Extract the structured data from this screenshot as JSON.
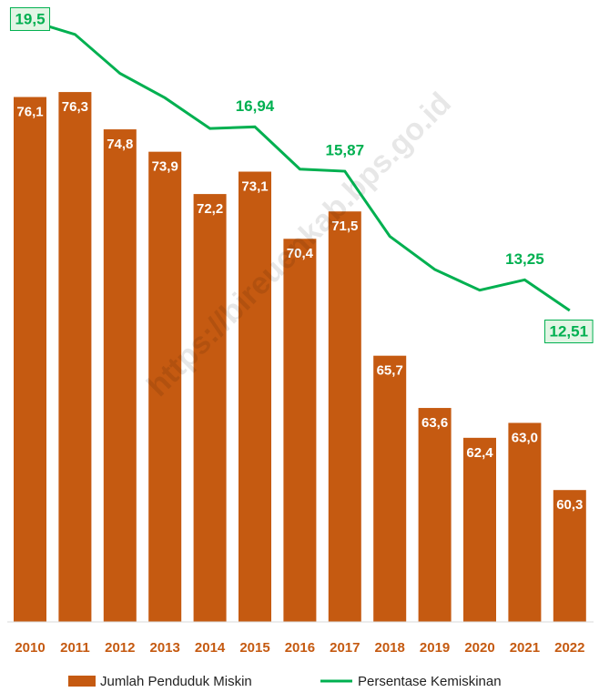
{
  "chart_data": {
    "type": "bar_line",
    "watermark": "https://bireuenkab.bps.go.id",
    "categories": [
      "2010",
      "2011",
      "2012",
      "2013",
      "2014",
      "2015",
      "2016",
      "2017",
      "2018",
      "2019",
      "2020",
      "2021",
      "2022"
    ],
    "series": [
      {
        "name": "Jumlah Penduduk Miskin",
        "type": "bar",
        "color": "#c55a11",
        "values": [
          76.1,
          76.3,
          74.8,
          73.9,
          72.2,
          73.1,
          70.4,
          71.5,
          65.7,
          63.6,
          62.4,
          63.0,
          60.3
        ],
        "value_labels": [
          "76,1",
          "76,3",
          "74,8",
          "73,9",
          "72,2",
          "73,1",
          "70,4",
          "71,5",
          "65,7",
          "63,6",
          "62,4",
          "63,0",
          "60,3"
        ]
      },
      {
        "name": "Persentase Kemiskinan",
        "type": "line",
        "axis": "y2",
        "color": "#00b050",
        "values": [
          19.5,
          19.17,
          18.23,
          17.64,
          16.9,
          16.94,
          15.92,
          15.87,
          14.3,
          13.5,
          13.0,
          13.25,
          12.51
        ],
        "value_labels": [
          "19,5",
          null,
          null,
          null,
          null,
          "16,94",
          null,
          "15,87",
          null,
          null,
          null,
          "13,25",
          "12,51"
        ],
        "boxed": [
          true,
          false,
          false,
          false,
          false,
          false,
          false,
          false,
          false,
          false,
          false,
          false,
          true
        ]
      }
    ],
    "ylim": [
      55,
      80
    ],
    "y2lim": [
      5,
      20
    ],
    "legend": "bottom"
  }
}
